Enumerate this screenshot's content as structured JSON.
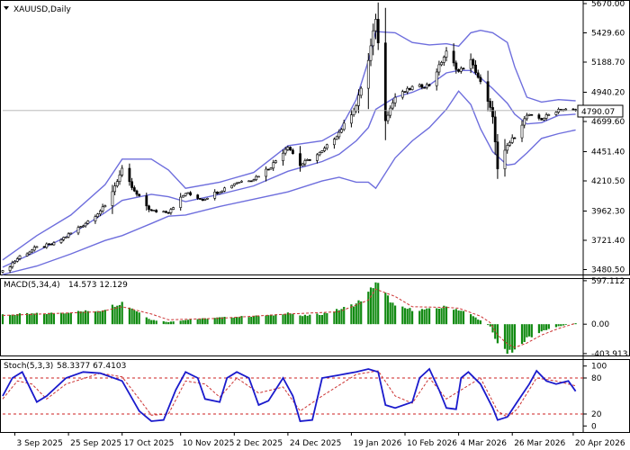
{
  "chart_data": [
    {
      "type": "candlestick",
      "title": "XAUUSD,Daily",
      "indicator": "Bollinger Bands",
      "price_label": "4790.07",
      "ylim": [
        3440,
        5700
      ],
      "y_ticks": [
        5670.0,
        5429.6,
        5188.7,
        4940.2,
        4699.6,
        4451.4,
        4210.5,
        3962.3,
        3721.4,
        3480.5
      ],
      "x_ticks": [
        {
          "date": "2025-09-03",
          "label": "3 Sep 2025"
        },
        {
          "date": "2025-09-25",
          "label": "25 Sep 2025"
        },
        {
          "date": "2025-10-17",
          "label": "17 Oct 2025"
        },
        {
          "date": "2025-11-10",
          "label": "10 Nov 2025"
        },
        {
          "date": "2025-12-02",
          "label": "2 Dec 2025"
        },
        {
          "date": "2025-12-24",
          "label": "24 Dec 2025"
        },
        {
          "date": "2026-01-19",
          "label": "19 Jan 2026"
        },
        {
          "date": "2026-02-10",
          "label": "10 Feb 2026"
        },
        {
          "date": "2026-03-04",
          "label": "4 Mar 2026"
        },
        {
          "date": "2026-03-26",
          "label": "26 Mar 2026"
        },
        {
          "date": "2026-04-20",
          "label": "20 Apr 2026"
        }
      ],
      "close_path": [
        [
          "2025-08-29",
          3460
        ],
        [
          "2025-09-05",
          3590
        ],
        [
          "2025-09-12",
          3660
        ],
        [
          "2025-09-19",
          3690
        ],
        [
          "2025-09-26",
          3780
        ],
        [
          "2025-10-03",
          3880
        ],
        [
          "2025-10-10",
          4000
        ],
        [
          "2025-10-17",
          4300
        ],
        [
          "2025-10-22",
          4120
        ],
        [
          "2025-10-29",
          3960
        ],
        [
          "2025-11-05",
          3960
        ],
        [
          "2025-11-12",
          4110
        ],
        [
          "2025-11-19",
          4060
        ],
        [
          "2025-11-26",
          4130
        ],
        [
          "2025-12-03",
          4200
        ],
        [
          "2025-12-10",
          4230
        ],
        [
          "2025-12-17",
          4330
        ],
        [
          "2025-12-24",
          4500
        ],
        [
          "2025-12-29",
          4340
        ],
        [
          "2026-01-07",
          4450
        ],
        [
          "2026-01-14",
          4610
        ],
        [
          "2026-01-21",
          4830
        ],
        [
          "2026-01-26",
          5200
        ],
        [
          "2026-01-29",
          5550
        ],
        [
          "2026-02-02",
          4720
        ],
        [
          "2026-02-06",
          4900
        ],
        [
          "2026-02-13",
          4980
        ],
        [
          "2026-02-20",
          5000
        ],
        [
          "2026-02-27",
          5270
        ],
        [
          "2026-03-04",
          5110
        ],
        [
          "2026-03-09",
          5200
        ],
        [
          "2026-03-13",
          5020
        ],
        [
          "2026-03-18",
          4750
        ],
        [
          "2026-03-20",
          4300
        ],
        [
          "2026-03-24",
          4500
        ],
        [
          "2026-03-27",
          4580
        ],
        [
          "2026-04-01",
          4750
        ],
        [
          "2026-04-07",
          4720
        ],
        [
          "2026-04-14",
          4800
        ],
        [
          "2026-04-21",
          4790
        ]
      ],
      "bands_path": [
        [
          "2025-08-29",
          3560,
          3500,
          3440
        ],
        [
          "2025-09-12",
          3760,
          3630,
          3510
        ],
        [
          "2025-09-26",
          3930,
          3770,
          3610
        ],
        [
          "2025-10-10",
          4180,
          3950,
          3720
        ],
        [
          "2025-10-17",
          4390,
          4050,
          3760
        ],
        [
          "2025-10-29",
          4390,
          4100,
          3860
        ],
        [
          "2025-11-05",
          4300,
          4080,
          3920
        ],
        [
          "2025-11-12",
          4150,
          4040,
          3930
        ],
        [
          "2025-11-26",
          4200,
          4100,
          4000
        ],
        [
          "2025-12-10",
          4280,
          4170,
          4060
        ],
        [
          "2025-12-24",
          4500,
          4290,
          4120
        ],
        [
          "2026-01-07",
          4540,
          4370,
          4210
        ],
        [
          "2026-01-14",
          4620,
          4430,
          4240
        ],
        [
          "2026-01-21",
          4880,
          4540,
          4200
        ],
        [
          "2026-01-26",
          5200,
          4650,
          4200
        ],
        [
          "2026-01-29",
          5440,
          4800,
          4150
        ],
        [
          "2026-02-06",
          5430,
          4900,
          4400
        ],
        [
          "2026-02-13",
          5350,
          4940,
          4540
        ],
        [
          "2026-02-20",
          5330,
          5000,
          4650
        ],
        [
          "2026-02-27",
          5340,
          5100,
          4800
        ],
        [
          "2026-03-04",
          5320,
          5120,
          4950
        ],
        [
          "2026-03-09",
          5430,
          5120,
          4840
        ],
        [
          "2026-03-13",
          5450,
          5060,
          4640
        ],
        [
          "2026-03-18",
          5430,
          4970,
          4450
        ],
        [
          "2026-03-24",
          5350,
          4850,
          4340
        ],
        [
          "2026-03-27",
          5150,
          4760,
          4350
        ],
        [
          "2026-04-01",
          4900,
          4680,
          4440
        ],
        [
          "2026-04-07",
          4860,
          4690,
          4560
        ],
        [
          "2026-04-14",
          4880,
          4750,
          4600
        ],
        [
          "2026-04-21",
          4870,
          4760,
          4630
        ]
      ]
    },
    {
      "type": "bar",
      "title": "MACD(5,34,4)",
      "values_label": "14.573 12.129",
      "ylim": [
        -430,
        620
      ],
      "y_ticks": [
        597.112,
        0.0,
        -403.913
      ],
      "histogram_path": [
        [
          "2025-08-29",
          130
        ],
        [
          "2025-09-19",
          150
        ],
        [
          "2025-10-08",
          190
        ],
        [
          "2025-10-17",
          300
        ],
        [
          "2025-10-29",
          60
        ],
        [
          "2025-11-05",
          30
        ],
        [
          "2025-11-12",
          60
        ],
        [
          "2025-11-26",
          90
        ],
        [
          "2025-12-17",
          120
        ],
        [
          "2025-12-24",
          160
        ],
        [
          "2025-12-29",
          110
        ],
        [
          "2026-01-07",
          140
        ],
        [
          "2026-01-14",
          200
        ],
        [
          "2026-01-21",
          280
        ],
        [
          "2026-01-26",
          420
        ],
        [
          "2026-01-29",
          580
        ],
        [
          "2026-02-06",
          240
        ],
        [
          "2026-02-13",
          200
        ],
        [
          "2026-02-20",
          200
        ],
        [
          "2026-02-27",
          240
        ],
        [
          "2026-03-04",
          200
        ],
        [
          "2026-03-09",
          130
        ],
        [
          "2026-03-13",
          50
        ],
        [
          "2026-03-17",
          -30
        ],
        [
          "2026-03-20",
          -280
        ],
        [
          "2026-03-24",
          -370
        ],
        [
          "2026-03-27",
          -350
        ],
        [
          "2026-04-01",
          -200
        ],
        [
          "2026-04-07",
          -100
        ],
        [
          "2026-04-14",
          -30
        ],
        [
          "2026-04-21",
          15
        ]
      ],
      "signal_path": [
        [
          "2025-08-29",
          120
        ],
        [
          "2025-10-08",
          170
        ],
        [
          "2025-10-17",
          240
        ],
        [
          "2025-10-29",
          140
        ],
        [
          "2025-11-05",
          60
        ],
        [
          "2025-11-26",
          80
        ],
        [
          "2025-12-24",
          140
        ],
        [
          "2026-01-14",
          170
        ],
        [
          "2026-01-26",
          330
        ],
        [
          "2026-01-29",
          480
        ],
        [
          "2026-02-06",
          380
        ],
        [
          "2026-02-13",
          240
        ],
        [
          "2026-02-27",
          230
        ],
        [
          "2026-03-04",
          220
        ],
        [
          "2026-03-13",
          110
        ],
        [
          "2026-03-17",
          20
        ],
        [
          "2026-03-20",
          -150
        ],
        [
          "2026-03-24",
          -270
        ],
        [
          "2026-03-27",
          -320
        ],
        [
          "2026-04-01",
          -260
        ],
        [
          "2026-04-07",
          -150
        ],
        [
          "2026-04-14",
          -60
        ],
        [
          "2026-04-21",
          12
        ]
      ]
    },
    {
      "type": "line",
      "title": "Stoch(5,3,3)",
      "values_label": "58.3377 67.4103",
      "ylim": [
        0,
        100
      ],
      "y_ticks": [
        100,
        80,
        20,
        0
      ],
      "levels": [
        80,
        20
      ],
      "main_path": [
        [
          "2025-08-29",
          50
        ],
        [
          "2025-09-02",
          80
        ],
        [
          "2025-09-06",
          90
        ],
        [
          "2025-09-12",
          40
        ],
        [
          "2025-09-16",
          50
        ],
        [
          "2025-09-24",
          80
        ],
        [
          "2025-10-01",
          90
        ],
        [
          "2025-10-08",
          88
        ],
        [
          "2025-10-17",
          75
        ],
        [
          "2025-10-24",
          25
        ],
        [
          "2025-10-29",
          8
        ],
        [
          "2025-11-03",
          10
        ],
        [
          "2025-11-08",
          60
        ],
        [
          "2025-11-12",
          90
        ],
        [
          "2025-11-17",
          80
        ],
        [
          "2025-11-20",
          45
        ],
        [
          "2025-11-26",
          40
        ],
        [
          "2025-11-29",
          80
        ],
        [
          "2025-12-03",
          90
        ],
        [
          "2025-12-08",
          80
        ],
        [
          "2025-12-12",
          35
        ],
        [
          "2025-12-16",
          42
        ],
        [
          "2025-12-22",
          80
        ],
        [
          "2025-12-26",
          50
        ],
        [
          "2025-12-29",
          8
        ],
        [
          "2026-01-03",
          10
        ],
        [
          "2026-01-07",
          80
        ],
        [
          "2026-01-14",
          85
        ],
        [
          "2026-01-21",
          90
        ],
        [
          "2026-01-26",
          95
        ],
        [
          "2026-01-30",
          90
        ],
        [
          "2026-02-02",
          35
        ],
        [
          "2026-02-06",
          30
        ],
        [
          "2026-02-13",
          40
        ],
        [
          "2026-02-16",
          80
        ],
        [
          "2026-02-20",
          95
        ],
        [
          "2026-02-24",
          60
        ],
        [
          "2026-02-27",
          30
        ],
        [
          "2026-03-03",
          28
        ],
        [
          "2026-03-05",
          80
        ],
        [
          "2026-03-08",
          90
        ],
        [
          "2026-03-13",
          70
        ],
        [
          "2026-03-18",
          30
        ],
        [
          "2026-03-20",
          10
        ],
        [
          "2026-03-24",
          15
        ],
        [
          "2026-03-28",
          40
        ],
        [
          "2026-04-02",
          70
        ],
        [
          "2026-04-05",
          92
        ],
        [
          "2026-04-09",
          75
        ],
        [
          "2026-04-13",
          70
        ],
        [
          "2026-04-18",
          75
        ],
        [
          "2026-04-21",
          58
        ]
      ],
      "signal_path": [
        [
          "2025-08-29",
          45
        ],
        [
          "2025-09-04",
          75
        ],
        [
          "2025-09-10",
          70
        ],
        [
          "2025-09-16",
          45
        ],
        [
          "2025-09-24",
          70
        ],
        [
          "2025-10-08",
          88
        ],
        [
          "2025-10-17",
          82
        ],
        [
          "2025-10-24",
          45
        ],
        [
          "2025-10-29",
          18
        ],
        [
          "2025-11-05",
          20
        ],
        [
          "2025-11-12",
          75
        ],
        [
          "2025-11-20",
          70
        ],
        [
          "2025-11-26",
          48
        ],
        [
          "2025-12-03",
          80
        ],
        [
          "2025-12-12",
          55
        ],
        [
          "2025-12-22",
          65
        ],
        [
          "2025-12-29",
          25
        ],
        [
          "2026-01-07",
          50
        ],
        [
          "2026-01-21",
          86
        ],
        [
          "2026-01-30",
          92
        ],
        [
          "2026-02-06",
          50
        ],
        [
          "2026-02-13",
          38
        ],
        [
          "2026-02-20",
          80
        ],
        [
          "2026-02-27",
          45
        ],
        [
          "2026-03-05",
          60
        ],
        [
          "2026-03-13",
          80
        ],
        [
          "2026-03-20",
          25
        ],
        [
          "2026-03-24",
          15
        ],
        [
          "2026-03-28",
          28
        ],
        [
          "2026-04-05",
          80
        ],
        [
          "2026-04-13",
          75
        ],
        [
          "2026-04-21",
          67
        ]
      ]
    }
  ],
  "style": {
    "band_color": "#6e6edd",
    "bull_color": "#ffffff",
    "bear_color": "#000000",
    "macd_color": "#118a11",
    "macd_signal_color": "#cc3333",
    "stoch_color": "#1a1acc",
    "stoch_signal_color": "#cc3333",
    "level_color": "#cc2222"
  }
}
